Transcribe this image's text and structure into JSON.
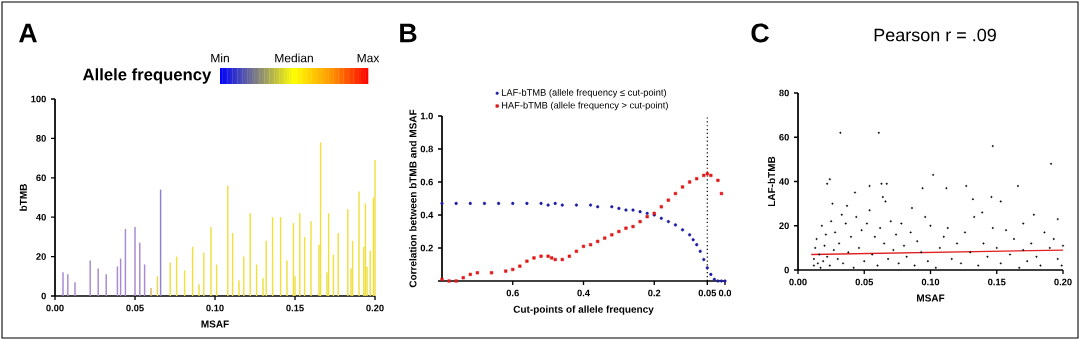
{
  "chart_data": [
    {
      "type": "bar",
      "annotations": [
        "A"
      ],
      "xlabel": "MSAF",
      "ylabel": "bTMB",
      "clabel": "Allele frequency",
      "clim": [
        0,
        1
      ],
      "cticks": [
        {
          "value": 0,
          "label": "Min"
        },
        {
          "value": 0.5,
          "label": "Median"
        },
        {
          "value": 1,
          "label": "Max"
        }
      ],
      "xlim": [
        0,
        0.2
      ],
      "xticks": [
        {
          "value": 0,
          "label": "0.00"
        },
        0.05,
        {
          "value": 0.1,
          "label": "0.10"
        },
        0.15,
        {
          "value": 0.2,
          "label": "0.20"
        }
      ],
      "ylim": [
        0,
        100
      ],
      "yticks": [
        0,
        20,
        40,
        60,
        80,
        100
      ],
      "x": [
        0.005,
        0.008,
        0.0125,
        0.022,
        0.027,
        0.032,
        0.039,
        0.041,
        0.044,
        0.05,
        0.053,
        0.056,
        0.06,
        0.064,
        0.066,
        0.072,
        0.076,
        0.081,
        0.086,
        0.09,
        0.093,
        0.0975,
        0.101,
        0.108,
        0.111,
        0.115,
        0.118,
        0.122,
        0.126,
        0.13,
        0.132,
        0.136,
        0.141,
        0.145,
        0.149,
        0.15,
        0.153,
        0.156,
        0.16,
        0.165,
        0.166,
        0.17,
        0.171,
        0.174,
        0.177,
        0.183,
        0.185,
        0.186,
        0.19,
        0.193,
        0.194,
        0.195,
        0.197,
        0.199,
        0.2
      ],
      "values": [
        12,
        11,
        7,
        18,
        14,
        11,
        15,
        19,
        34,
        35,
        27,
        16,
        4,
        10,
        54,
        17,
        20,
        13,
        25,
        6,
        22,
        35,
        16,
        56,
        32,
        8,
        20,
        42,
        16,
        9,
        28,
        40,
        40,
        18,
        37,
        10,
        42,
        30,
        38,
        26,
        78,
        12,
        42,
        21,
        32,
        44,
        14,
        28,
        53,
        25,
        47,
        15,
        23,
        50,
        69
      ],
      "colors": [
        "#a98ad0",
        "#a98ad0",
        "#a98ad0",
        "#a98ad0",
        "#a98ad0",
        "#a98ad0",
        "#a98ad0",
        "#a98ad0",
        "#a98ad0",
        "#a98ad0",
        "#a98ad0",
        "#a98ad0",
        "#d8b860",
        "#e8d850",
        "#8c84c8",
        "#efe040",
        "#efe040",
        "#efe040",
        "#efe040",
        "#efe040",
        "#efe040",
        "#efe040",
        "#efe040",
        "#efe040",
        "#efe040",
        "#efe040",
        "#efe040",
        "#efe040",
        "#efe040",
        "#efe040",
        "#efe040",
        "#efe040",
        "#efe040",
        "#efe040",
        "#efe040",
        "#efe040",
        "#efe040",
        "#efe040",
        "#efe040",
        "#efe040",
        "#efe040",
        "#efe040",
        "#efe040",
        "#efe040",
        "#efe040",
        "#efe040",
        "#efe040",
        "#efe040",
        "#efe040",
        "#efe040",
        "#efe040",
        "#efe040",
        "#efe040",
        "#efe040",
        "#efe040"
      ]
    },
    {
      "type": "scatter",
      "annotations": [
        "B"
      ],
      "xlabel": "Cut-points of allele frequency",
      "ylabel": "Correlation between bTMB and MSAF",
      "legend": "top",
      "xlim": [
        0.8,
        0
      ],
      "xticks": [
        0.6,
        0.4,
        0.2,
        0.05,
        {
          "value": 0,
          "label": "0.0"
        }
      ],
      "ylim": [
        0,
        1
      ],
      "yticks": [
        {
          "value": 0,
          "label": null
        },
        0.2,
        0.4,
        0.6,
        0.8,
        {
          "value": 1,
          "label": "1.0"
        }
      ],
      "ref_lines": [
        {
          "axis": "x",
          "value": 0.05,
          "line_style": "dotted",
          "color": "#000000"
        }
      ],
      "series": [
        {
          "name": "LAF-bTMB (allele frequency ≤ cut-point)",
          "color": "#1c1ca8",
          "marker": "circle",
          "x": [
            0.8,
            0.76,
            0.72,
            0.68,
            0.64,
            0.6,
            0.56,
            0.52,
            0.5,
            0.48,
            0.46,
            0.42,
            0.38,
            0.36,
            0.32,
            0.3,
            0.28,
            0.26,
            0.24,
            0.22,
            0.2,
            0.18,
            0.16,
            0.14,
            0.12,
            0.1,
            0.09,
            0.08,
            0.07,
            0.06,
            0.05,
            0.04,
            0.03,
            0.02,
            0.01,
            0.0
          ],
          "values": [
            0.47,
            0.47,
            0.47,
            0.47,
            0.47,
            0.47,
            0.47,
            0.47,
            0.46,
            0.47,
            0.46,
            0.46,
            0.46,
            0.45,
            0.45,
            0.44,
            0.43,
            0.43,
            0.42,
            0.41,
            0.4,
            0.38,
            0.36,
            0.34,
            0.31,
            0.28,
            0.25,
            0.22,
            0.18,
            0.13,
            0.08,
            0.04,
            0.01,
            0,
            0,
            0
          ]
        },
        {
          "name": "HAF-bTMB (allele frequency > cut-point)",
          "color": "#e01818",
          "marker": "square",
          "x": [
            0.8,
            0.78,
            0.76,
            0.74,
            0.72,
            0.7,
            0.66,
            0.62,
            0.6,
            0.58,
            0.56,
            0.54,
            0.52,
            0.5,
            0.49,
            0.48,
            0.46,
            0.44,
            0.42,
            0.4,
            0.38,
            0.36,
            0.34,
            0.32,
            0.3,
            0.28,
            0.26,
            0.24,
            0.22,
            0.2,
            0.18,
            0.16,
            0.14,
            0.12,
            0.1,
            0.08,
            0.06,
            0.05,
            0.04,
            0.02,
            0.01
          ],
          "values": [
            0.01,
            0,
            0,
            0.02,
            0.04,
            0.05,
            0.05,
            0.06,
            0.07,
            0.09,
            0.12,
            0.14,
            0.15,
            0.15,
            0.14,
            0.13,
            0.13,
            0.15,
            0.18,
            0.21,
            0.22,
            0.24,
            0.26,
            0.28,
            0.3,
            0.32,
            0.33,
            0.36,
            0.39,
            0.41,
            0.45,
            0.49,
            0.53,
            0.57,
            0.6,
            0.62,
            0.64,
            0.65,
            0.64,
            0.61,
            0.53
          ]
        }
      ]
    },
    {
      "type": "scatter",
      "annotations": [
        "C"
      ],
      "title": "Pearson r = .09",
      "xlabel": "MSAF",
      "ylabel": "LAF-bTMB",
      "xlim": [
        0,
        0.2
      ],
      "xticks": [
        {
          "value": 0,
          "label": "0.00"
        },
        0.05,
        {
          "value": 0.1,
          "label": "0.10"
        },
        0.15,
        {
          "value": 0.2,
          "label": "0.20"
        }
      ],
      "ylim": [
        0,
        80
      ],
      "yticks": [
        0,
        20,
        40,
        60,
        80
      ],
      "series": [
        {
          "color": "#000000",
          "marker": "circle",
          "x": [
            0.032,
            0.061,
            0.147,
            0.191,
            0.102,
            0.024,
            0.022,
            0.043,
            0.054,
            0.063,
            0.067,
            0.094,
            0.112,
            0.127,
            0.166,
            0.132,
            0.146,
            0.153,
            0.026,
            0.037,
            0.064,
            0.066,
            0.178,
            0.086,
            0.196,
            0.17,
            0.139,
            0.012,
            0.012,
            0.013,
            0.014,
            0.015,
            0.016,
            0.017,
            0.018,
            0.019,
            0.02,
            0.021,
            0.022,
            0.024,
            0.025,
            0.027,
            0.028,
            0.03,
            0.031,
            0.033,
            0.034,
            0.036,
            0.038,
            0.04,
            0.042,
            0.044,
            0.046,
            0.048,
            0.05,
            0.052,
            0.054,
            0.056,
            0.058,
            0.06,
            0.062,
            0.065,
            0.068,
            0.07,
            0.072,
            0.074,
            0.076,
            0.078,
            0.08,
            0.082,
            0.085,
            0.088,
            0.09,
            0.093,
            0.096,
            0.098,
            0.1,
            0.104,
            0.107,
            0.11,
            0.113,
            0.116,
            0.12,
            0.123,
            0.126,
            0.13,
            0.133,
            0.136,
            0.14,
            0.143,
            0.147,
            0.15,
            0.153,
            0.157,
            0.16,
            0.163,
            0.167,
            0.17,
            0.173,
            0.176,
            0.18,
            0.183,
            0.186,
            0.19,
            0.193,
            0.196,
            0.199,
            0.2
          ],
          "values": [
            62,
            62,
            56,
            48,
            43,
            41,
            39,
            35,
            38,
            39,
            39,
            37,
            37,
            38,
            38,
            32,
            33,
            31,
            30,
            29,
            33,
            31,
            25,
            28,
            23,
            21,
            26,
            2,
            5,
            10,
            14,
            3,
            7,
            1,
            20,
            4,
            11,
            16,
            6,
            2,
            22,
            9,
            17,
            5,
            12,
            25,
            3,
            21,
            8,
            15,
            1,
            24,
            10,
            18,
            4,
            21,
            27,
            7,
            15,
            2,
            19,
            12,
            5,
            22,
            9,
            16,
            3,
            21,
            11,
            6,
            17,
            2,
            13,
            8,
            24,
            4,
            20,
            1,
            10,
            15,
            19,
            5,
            12,
            3,
            17,
            8,
            24,
            2,
            12,
            6,
            19,
            10,
            3,
            18,
            7,
            14,
            1,
            9,
            4,
            12,
            6,
            2,
            17,
            10,
            14,
            5,
            2,
            11
          ]
        },
        {
          "type": "line",
          "color": "#e02020",
          "marker": "none",
          "x": [
            0.01,
            0.2
          ],
          "values": [
            7,
            9
          ]
        }
      ]
    }
  ]
}
